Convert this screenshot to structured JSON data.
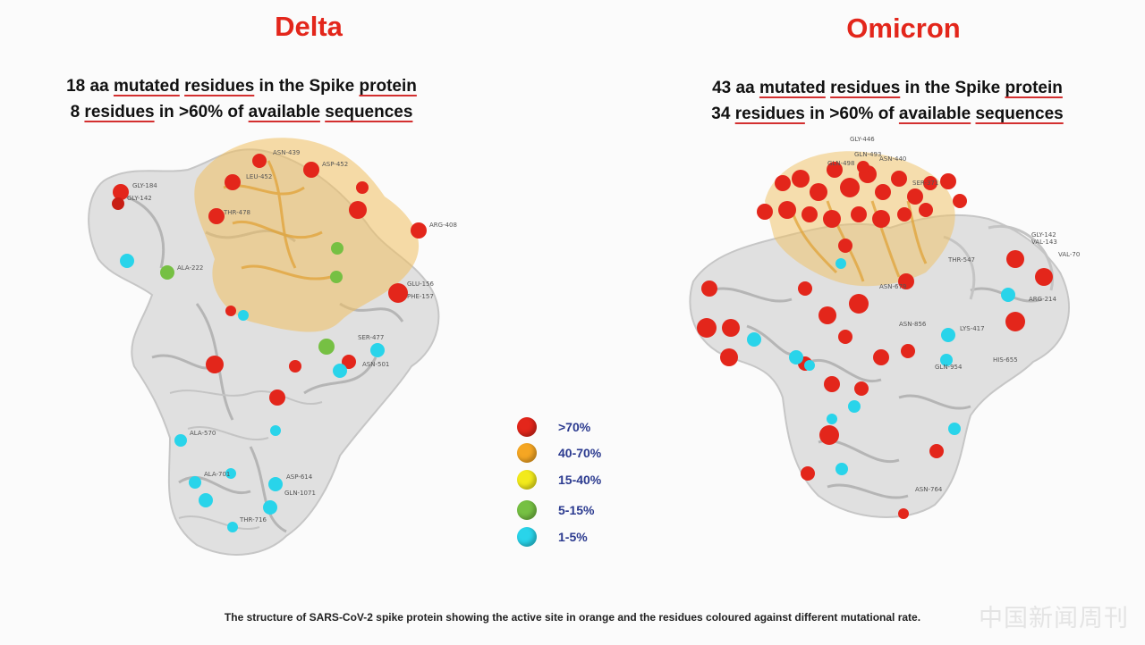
{
  "delta": {
    "title": "Delta",
    "line1": {
      "a": "18 aa ",
      "b": "mutated",
      "c": " ",
      "d": "residues",
      "e": " in the Spike ",
      "f": "protein"
    },
    "line2": {
      "a": "8 ",
      "b": "residues",
      "c": " in >60% of ",
      "d": "available",
      "e": " ",
      "f": "sequences"
    }
  },
  "omicron": {
    "title": "Omicron",
    "line1": {
      "a": "43 aa ",
      "b": "mutated",
      "c": " ",
      "d": "residues",
      "e": " in the Spike ",
      "f": "protein"
    },
    "line2": {
      "a": "34 ",
      "b": "residues",
      "c": " in >60% of ",
      "d": "available",
      "e": " ",
      "f": "sequences"
    }
  },
  "legend": {
    "items": [
      {
        "label": ">70%",
        "color": "#e3261b"
      },
      {
        "label": "40-70%",
        "color": "#f5a623"
      },
      {
        "label": "15-40%",
        "color": "#f2ea1c"
      },
      {
        "label": "5-15%",
        "color": "#76c043"
      },
      {
        "label": "1-5%",
        "color": "#29d4ea"
      }
    ]
  },
  "colors": {
    "title_red": "#e3261b",
    "structure_gray": "#c9c9c9",
    "active_site": "#f0c060"
  },
  "caption": "The structure of SARS-CoV-2 spike protein showing the active site in orange and the residues coloured against different mutational rate.",
  "watermark": "中国新闻周刊",
  "delta_labels": [
    "GLY-184",
    "ASN-439",
    "GLY-142",
    "ASP-452",
    "THR-478",
    "ARG-408",
    "LEU-452",
    "ALA-222",
    "GLU-156",
    "PHE-157",
    "SER-477",
    "ASN-501",
    "ALA-570",
    "ALA-701",
    "GLN-1071",
    "ASP-614",
    "THR-716"
  ],
  "omicron_labels": [
    "GLY-446",
    "GLN-493",
    "GLN-498",
    "SER-371",
    "GLY-142",
    "VAL-143",
    "VAL-70",
    "ARG-214",
    "THR-547",
    "ASN-440",
    "ASN-679",
    "GLN-954",
    "ASN-856",
    "ASN-764",
    "HIS-655",
    "LYS-417"
  ]
}
